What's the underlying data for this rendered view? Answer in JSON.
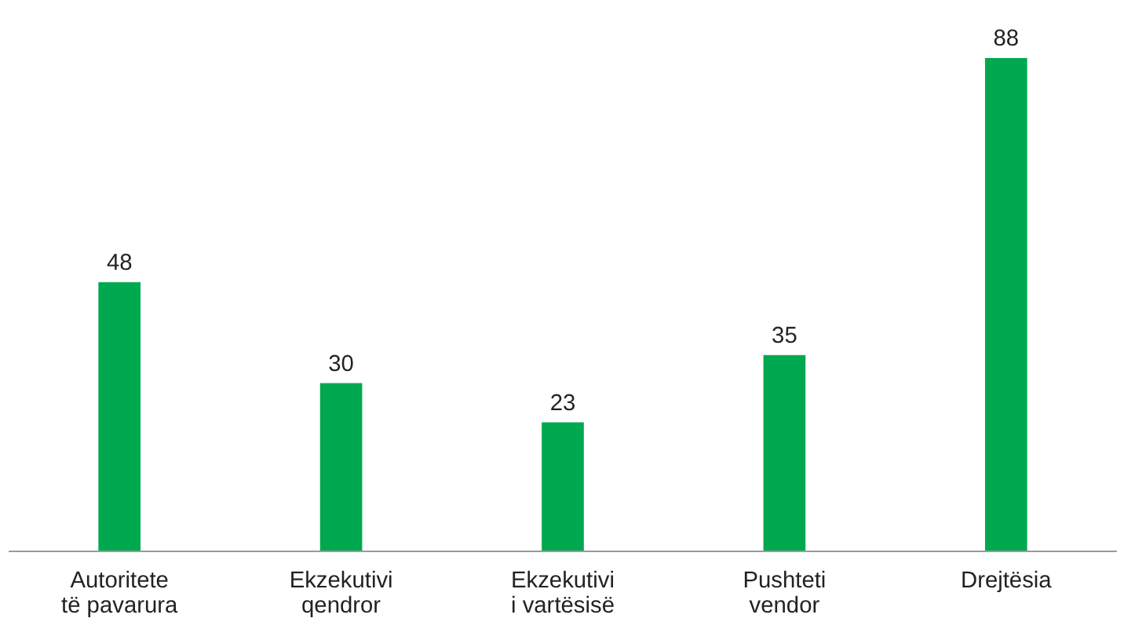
{
  "chart_data": {
    "type": "bar",
    "categories": [
      "Autoritete\ntë pavarura",
      "Ekzekutivi\nqendror",
      "Ekzekutivi\ni vartësisë",
      "Pushteti\nvendor",
      "Drejtësia"
    ],
    "values": [
      48,
      30,
      23,
      35,
      88
    ],
    "color": "#00a84f",
    "data_labels": true
  }
}
